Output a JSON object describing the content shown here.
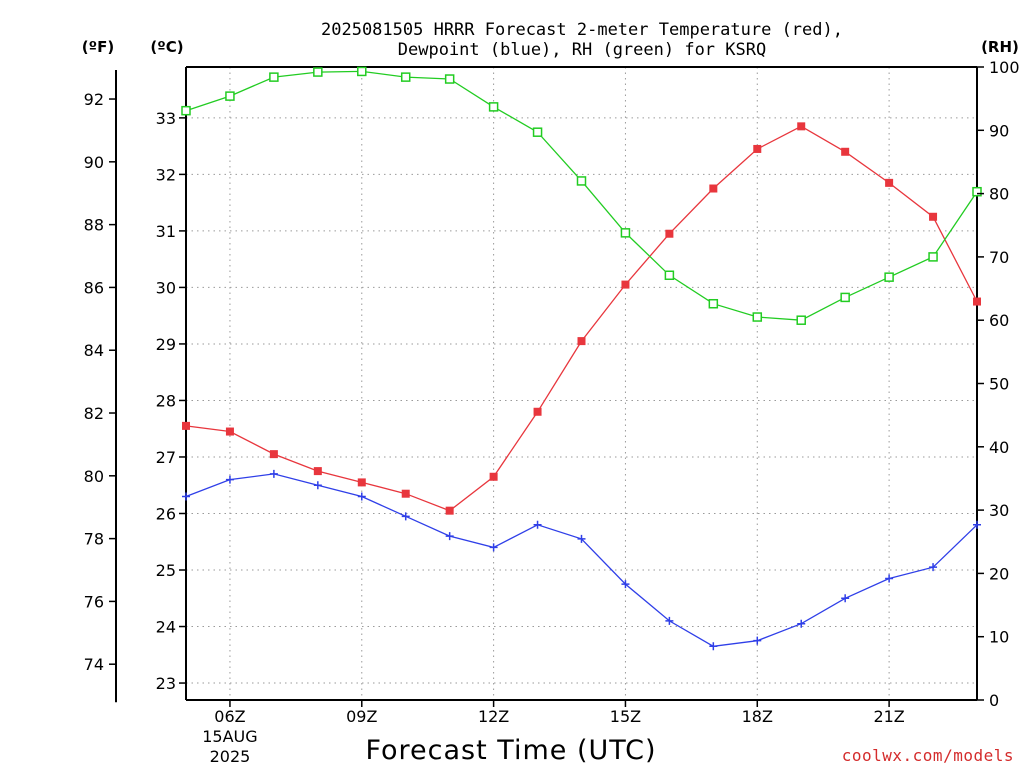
{
  "chart_data": {
    "type": "line",
    "title_line1": "2025081505 HRRR Forecast 2-meter Temperature (red),",
    "title_line2": "Dewpoint (blue), RH (green) for KSRQ",
    "xlabel": "Forecast Time (UTC)",
    "credit": "coolwx.com/models",
    "y_left_outer_label": "(ºF)",
    "y_left_inner_label": "(ºC)",
    "y_right_label": "(RH)",
    "x_hours": [
      5,
      6,
      7,
      8,
      9,
      10,
      11,
      12,
      13,
      14,
      15,
      16,
      17,
      18,
      19,
      20,
      21,
      22,
      23
    ],
    "x_range": [
      5,
      23
    ],
    "x_ticks": [
      {
        "hour": 6,
        "label": "06Z",
        "sub1": "15AUG",
        "sub2": "2025"
      },
      {
        "hour": 9,
        "label": "09Z"
      },
      {
        "hour": 12,
        "label": "12Z"
      },
      {
        "hour": 15,
        "label": "15Z"
      },
      {
        "hour": 18,
        "label": "18Z"
      },
      {
        "hour": 21,
        "label": "21Z"
      }
    ],
    "celsius_range": [
      22.7,
      33.9
    ],
    "celsius_ticks": [
      23,
      24,
      25,
      26,
      27,
      28,
      29,
      30,
      31,
      32,
      33
    ],
    "fahrenheit_ticks": [
      74,
      76,
      78,
      80,
      82,
      84,
      86,
      88,
      90,
      92
    ],
    "rh_range": [
      0,
      100
    ],
    "rh_ticks": [
      0,
      10,
      20,
      30,
      40,
      50,
      60,
      70,
      80,
      90,
      100
    ],
    "grid": true,
    "series": [
      {
        "name": "Temperature",
        "axis": "celsius",
        "color": "#e8363d",
        "marker": "filled-square",
        "values": [
          27.55,
          27.45,
          27.05,
          26.75,
          26.55,
          26.35,
          26.05,
          26.65,
          27.8,
          29.05,
          30.05,
          30.95,
          31.75,
          32.45,
          32.85,
          32.4,
          31.85,
          31.25,
          29.75
        ]
      },
      {
        "name": "Dewpoint",
        "axis": "celsius",
        "color": "#2f3fe8",
        "marker": "plus",
        "values": [
          26.3,
          26.6,
          26.7,
          26.5,
          26.3,
          25.95,
          25.6,
          25.4,
          25.8,
          25.55,
          24.75,
          24.1,
          23.65,
          23.75,
          24.05,
          24.5,
          24.85,
          25.05,
          25.8
        ]
      },
      {
        "name": "RH",
        "axis": "rh",
        "color": "#22cc22",
        "marker": "open-square",
        "values": [
          93.1,
          95.4,
          98.4,
          99.2,
          99.3,
          98.4,
          98.1,
          93.7,
          89.7,
          82.0,
          73.8,
          67.1,
          62.6,
          60.5,
          60.0,
          63.6,
          66.8,
          70.0,
          80.3
        ]
      }
    ]
  }
}
